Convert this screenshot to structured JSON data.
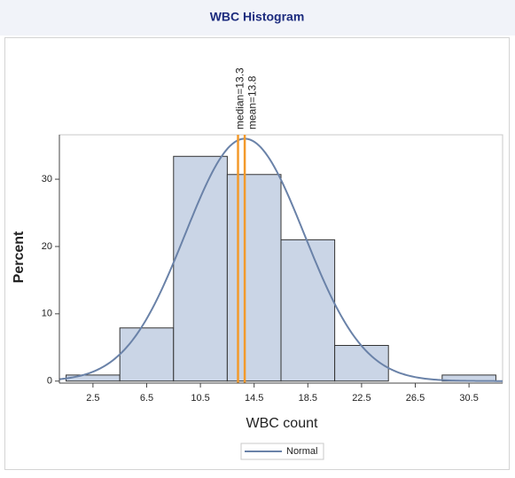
{
  "chart_data": {
    "type": "histogram",
    "title": "WBC Histogram",
    "xlabel": "WBC count",
    "ylabel": "Percent",
    "bins": [
      0.5,
      4.5,
      8.5,
      12.5,
      16.5,
      20.5,
      24.5,
      28.5,
      32.5
    ],
    "values": [
      0.9,
      7.9,
      33.4,
      30.7,
      21.0,
      5.3,
      0,
      0.9
    ],
    "color": "#cad5e6",
    "xlim": [
      0,
      33
    ],
    "xticks": [
      2.5,
      6.5,
      10.5,
      14.5,
      18.5,
      22.5,
      26.5,
      30.5
    ],
    "ylim": [
      -0.3,
      36.6
    ],
    "yticks": [
      0,
      10,
      20,
      30
    ],
    "reference_lines": [
      {
        "label": "median=13.3",
        "value": 13.3,
        "color": "#f39a2b"
      },
      {
        "label": "mean=13.8",
        "value": 13.8,
        "color": "#f39a2b"
      }
    ],
    "series": [
      {
        "name": "Normal",
        "color": "#6a82a8",
        "mu": 13.8,
        "sigma": 4.43
      }
    ],
    "legend": "bottom"
  }
}
